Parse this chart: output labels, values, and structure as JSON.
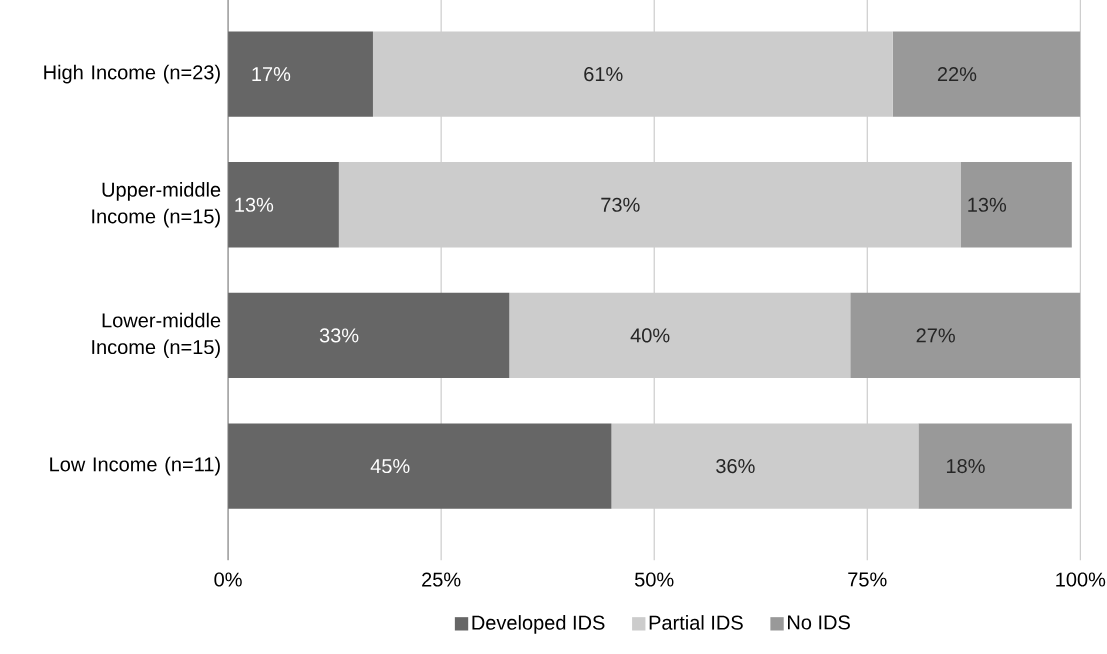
{
  "chart_data": {
    "type": "bar",
    "orientation": "horizontal",
    "stacked": true,
    "categories": [
      "High Income (n=23)",
      "Upper-middle Income (n=15)",
      "Lower-middle Income (n=15)",
      "Low Income (n=11)"
    ],
    "series": [
      {
        "name": "Developed IDS",
        "color": "#666666",
        "values": [
          17,
          13,
          33,
          45
        ],
        "value_labels": [
          "17%",
          "13%",
          "33%",
          "45%"
        ]
      },
      {
        "name": "Partial IDS",
        "color": "#cccccc",
        "values": [
          61,
          73,
          40,
          36
        ],
        "value_labels": [
          "61%",
          "73%",
          "40%",
          "36%"
        ]
      },
      {
        "name": "No IDS",
        "color": "#999999",
        "values": [
          22,
          13,
          27,
          18
        ],
        "value_labels": [
          "22%",
          "13%",
          "27%",
          "18%"
        ]
      }
    ],
    "xlim": [
      0,
      100
    ],
    "xticks": [
      {
        "value": 0,
        "label": "0%"
      },
      {
        "value": 25,
        "label": "25%"
      },
      {
        "value": 50,
        "label": "50%"
      },
      {
        "value": 75,
        "label": "75%"
      },
      {
        "value": 100,
        "label": "100%"
      }
    ],
    "grid": "x",
    "legend": "bottom"
  }
}
